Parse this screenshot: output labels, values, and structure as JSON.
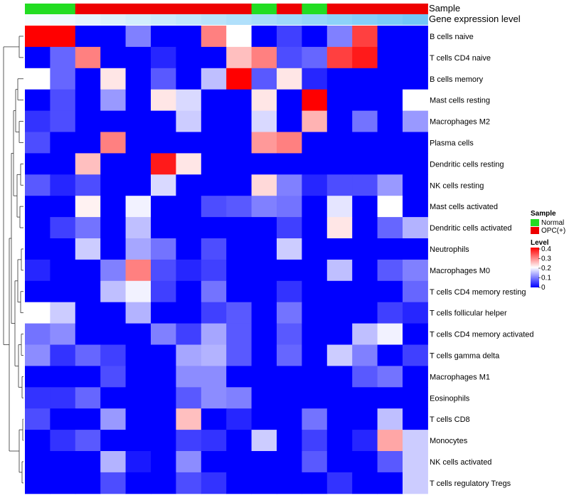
{
  "chart_data": {
    "type": "heatmap",
    "annotation_labels": {
      "sample": "Sample",
      "gene": "Gene expression level"
    },
    "legend_sample": {
      "title": "Sample",
      "entries": [
        {
          "label": "Normal",
          "color": "#22dd22"
        },
        {
          "label": "OPC(+)",
          "color": "#ee0000"
        }
      ]
    },
    "legend_level": {
      "title": "Level",
      "ticks": [
        "0.4",
        "0.3",
        "0.2",
        "0.1",
        "0"
      ],
      "colors": {
        "low": "#0000ff",
        "mid": "#ffffff",
        "high": "#ff0000"
      }
    },
    "value_range": [
      0,
      0.4
    ],
    "sample_groups": [
      "Normal",
      "Normal",
      "OPC(+)",
      "OPC(+)",
      "OPC(+)",
      "OPC(+)",
      "OPC(+)",
      "OPC(+)",
      "OPC(+)",
      "Normal",
      "OPC(+)",
      "Normal",
      "OPC(+)",
      "OPC(+)",
      "OPC(+)",
      "OPC(+)"
    ],
    "gene_levels": [
      0.05,
      0.1,
      0.15,
      0.2,
      0.25,
      0.3,
      0.35,
      0.4,
      0.45,
      0.5,
      0.55,
      0.6,
      0.65,
      0.7,
      0.75,
      0.8
    ],
    "rows": [
      "B cells naive",
      "T cells CD4 naive",
      "B cells memory",
      "Mast cells resting",
      "Macrophages M2",
      "Plasma cells",
      "Dendritic cells resting",
      "NK cells resting",
      "Mast cells activated",
      "Dendritic cells activated",
      "Neutrophils",
      "Macrophages M0",
      "T cells CD4 memory resting",
      "T cells follicular helper",
      "T cells CD4 memory activated",
      "T cells gamma delta",
      "Macrophages M1",
      "Eosinophils",
      "T cells CD8",
      "Monocytes",
      "NK cells activated",
      "T cells regulatory  Tregs"
    ],
    "values": [
      [
        0.4,
        0.4,
        0,
        0,
        0.1,
        0,
        0,
        0.3,
        0.2,
        0,
        0.05,
        0,
        0.1,
        0.35,
        0,
        0
      ],
      [
        0,
        0.08,
        0.3,
        0,
        0,
        0.03,
        0,
        0,
        0.25,
        0.3,
        0.06,
        0.08,
        0.35,
        0.38,
        0,
        0
      ],
      [
        0.2,
        0.08,
        0,
        0.22,
        0,
        0.07,
        0,
        0.15,
        0.4,
        0.07,
        0.22,
        0.03,
        0,
        0,
        0,
        0
      ],
      [
        0,
        0.06,
        0,
        0.12,
        0,
        0.22,
        0.17,
        0,
        0,
        0.22,
        0,
        0.4,
        0,
        0,
        0,
        0.2
      ],
      [
        0.04,
        0.06,
        0,
        0,
        0,
        0,
        0.16,
        0,
        0,
        0.17,
        0,
        0.26,
        0,
        0.09,
        0,
        0.12
      ],
      [
        0.06,
        0,
        0,
        0.3,
        0,
        0,
        0,
        0,
        0,
        0.28,
        0.3,
        0,
        0,
        0,
        0,
        0
      ],
      [
        0,
        0,
        0.25,
        0,
        0,
        0.38,
        0.22,
        0,
        0,
        0,
        0,
        0,
        0,
        0,
        0,
        0
      ],
      [
        0.07,
        0.03,
        0.06,
        0,
        0,
        0.17,
        0,
        0,
        0,
        0.23,
        0.1,
        0.03,
        0.06,
        0.06,
        0.12,
        0
      ],
      [
        0,
        0,
        0.21,
        0,
        0.19,
        0,
        0,
        0.06,
        0.07,
        0.1,
        0.09,
        0,
        0.18,
        0,
        0.2,
        0
      ],
      [
        0,
        0.05,
        0.09,
        0,
        0.15,
        0,
        0,
        0,
        0,
        0,
        0.05,
        0,
        0.22,
        0,
        0.08,
        0.14
      ],
      [
        0,
        0,
        0.16,
        0,
        0.13,
        0.09,
        0,
        0.06,
        0,
        0,
        0.16,
        0,
        0,
        0,
        0,
        0
      ],
      [
        0.03,
        0,
        0,
        0.1,
        0.3,
        0.06,
        0.03,
        0.05,
        0,
        0,
        0,
        0,
        0.15,
        0,
        0.07,
        0.1
      ],
      [
        0,
        0,
        0,
        0.15,
        0.19,
        0.05,
        0,
        0.09,
        0,
        0,
        0.04,
        0,
        0,
        0,
        0,
        0.08
      ],
      [
        0.2,
        0.16,
        0,
        0,
        0.14,
        0,
        0,
        0.05,
        0.07,
        0,
        0.09,
        0,
        0,
        0,
        0.05,
        0.03
      ],
      [
        0.09,
        0.11,
        0,
        0,
        0,
        0.1,
        0.05,
        0.13,
        0.07,
        0,
        0.07,
        0,
        0,
        0.15,
        0.19,
        0
      ],
      [
        0.11,
        0.04,
        0.08,
        0.05,
        0,
        0,
        0.13,
        0.14,
        0.07,
        0,
        0.08,
        0,
        0.16,
        0.1,
        0,
        0.05
      ],
      [
        0,
        0,
        0,
        0.06,
        0,
        0,
        0.11,
        0.11,
        0,
        0,
        0,
        0,
        0,
        0.07,
        0.09,
        0
      ],
      [
        0.04,
        0.04,
        0.08,
        0,
        0,
        0,
        0.07,
        0.11,
        0.1,
        0,
        0,
        0,
        0,
        0,
        0,
        0
      ],
      [
        0.06,
        0,
        0,
        0.12,
        0,
        0,
        0.25,
        0,
        0.03,
        0,
        0,
        0.09,
        0,
        0,
        0.15,
        0
      ],
      [
        0,
        0.04,
        0.07,
        0,
        0,
        0,
        0.05,
        0.04,
        0,
        0.16,
        0,
        0.05,
        0,
        0.03,
        0.27,
        0.16
      ],
      [
        0,
        0,
        0,
        0.14,
        0.02,
        0,
        0.11,
        0,
        0,
        0,
        0,
        0.07,
        0,
        0,
        0.07,
        0.16
      ],
      [
        0,
        0,
        0,
        0.06,
        0,
        0,
        0.06,
        0.04,
        0,
        0,
        0,
        0,
        0.04,
        0,
        0,
        0.16
      ]
    ]
  }
}
